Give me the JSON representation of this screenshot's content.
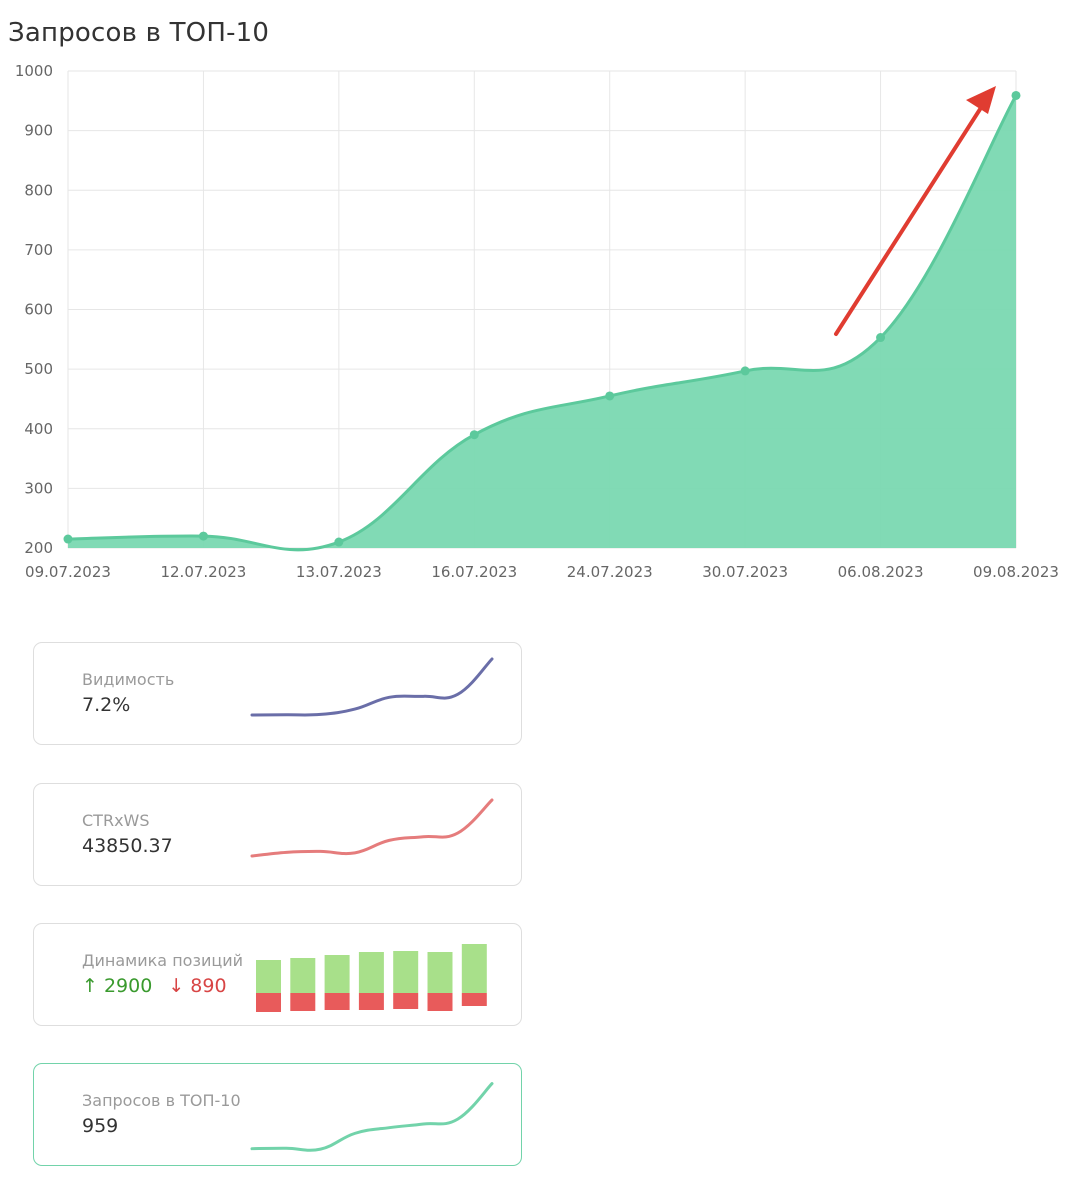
{
  "chart_data": {
    "type": "area",
    "title": "Запросов в ТОП-10",
    "categories": [
      "09.07.2023",
      "12.07.2023",
      "13.07.2023",
      "16.07.2023",
      "24.07.2023",
      "30.07.2023",
      "06.08.2023",
      "09.08.2023"
    ],
    "values": [
      215,
      220,
      210,
      390,
      455,
      497,
      553,
      959
    ],
    "ylim": [
      200,
      1000
    ],
    "yticks": [
      200,
      300,
      400,
      500,
      600,
      700,
      800,
      900,
      1000
    ],
    "grid": true,
    "colors": {
      "fill": "#7ad8b1",
      "line": "#5cc99c",
      "arrow": "#e03c31"
    }
  },
  "cards": [
    {
      "label": "Видимость",
      "value": "7.2%",
      "color": "#6a6ea8",
      "spark": [
        215,
        216,
        218,
        245,
        305,
        310,
        320,
        500
      ]
    },
    {
      "label": "CTRxWS",
      "value": "43850.37",
      "color": "#e57c7c",
      "spark": [
        215,
        235,
        240,
        232,
        300,
        320,
        340,
        520
      ]
    },
    {
      "label": "Динамика позиций",
      "up": "↑ 2900",
      "down": "↓ 890",
      "bars": [
        [
          33,
          19
        ],
        [
          35,
          18
        ],
        [
          38,
          17
        ],
        [
          41,
          17
        ],
        [
          42,
          16
        ],
        [
          41,
          18
        ],
        [
          49,
          13
        ]
      ],
      "colors": {
        "up": "#a8e08a",
        "down": "#e85b5b"
      }
    },
    {
      "label": "Запросов в ТОП-10",
      "value": "959",
      "color": "#72d3aa",
      "active": true,
      "spark": [
        215,
        220,
        210,
        390,
        455,
        497,
        553,
        959
      ]
    }
  ]
}
